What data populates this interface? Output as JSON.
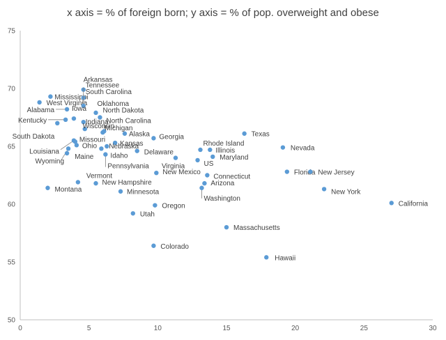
{
  "chart_data": {
    "type": "scatter",
    "title": "x axis = % of foreign born; y axis = % of pop. overweight and obese",
    "xlabel": "",
    "ylabel": "",
    "xlim": [
      0,
      30
    ],
    "ylim": [
      50,
      75
    ],
    "x_ticks": [
      "0",
      "5",
      "10",
      "15",
      "20",
      "25",
      "30"
    ],
    "y_ticks": [
      "50",
      "55",
      "60",
      "65",
      "70",
      "75"
    ],
    "grid": false,
    "legend": "none",
    "color": "#5b9bd5",
    "points": [
      {
        "label": "Arkansas",
        "x": 4.6,
        "y": 69.9
      },
      {
        "label": "Mississippi",
        "x": 2.2,
        "y": 69.3
      },
      {
        "label": "Tennessee",
        "x": 4.6,
        "y": 69.2
      },
      {
        "label": "West Virginia",
        "x": 1.4,
        "y": 68.8
      },
      {
        "label": "South Carolina",
        "x": 4.6,
        "y": 68.5
      },
      {
        "label": "Oklahoma",
        "x": 5.5,
        "y": 67.9
      },
      {
        "label": "Alabama",
        "x": 3.4,
        "y": 68.2
      },
      {
        "label": "North Dakota",
        "x": 5.8,
        "y": 67.5
      },
      {
        "label": "Iowa",
        "x": 3.9,
        "y": 67.4
      },
      {
        "label": "Kentucky",
        "x": 3.3,
        "y": 67.3
      },
      {
        "label": "Indiana",
        "x": 4.6,
        "y": 67.1
      },
      {
        "label": "South Dakota",
        "x": 2.7,
        "y": 67.0
      },
      {
        "label": "Wisconsin",
        "x": 4.7,
        "y": 66.5
      },
      {
        "label": "North Carolina",
        "x": 6.1,
        "y": 66.3
      },
      {
        "label": "Michigan",
        "x": 6.0,
        "y": 66.2
      },
      {
        "label": "Alaska",
        "x": 7.6,
        "y": 66.1
      },
      {
        "label": "Texas",
        "x": 16.3,
        "y": 66.1
      },
      {
        "label": "Georgia",
        "x": 9.7,
        "y": 65.7
      },
      {
        "label": "Louisiana",
        "x": 3.9,
        "y": 65.5
      },
      {
        "label": "Missouri",
        "x": 4.0,
        "y": 65.4
      },
      {
        "label": "Kansas",
        "x": 6.9,
        "y": 65.3
      },
      {
        "label": "Ohio",
        "x": 4.1,
        "y": 65.1
      },
      {
        "label": "Nebraska",
        "x": 6.3,
        "y": 65.0
      },
      {
        "label": "Rhode Island",
        "x": 13.1,
        "y": 64.7
      },
      {
        "label": "Illinois",
        "x": 13.8,
        "y": 64.7
      },
      {
        "label": "Nevada",
        "x": 19.1,
        "y": 64.9
      },
      {
        "label": "Idaho",
        "x": 5.9,
        "y": 64.8
      },
      {
        "label": "Delaware",
        "x": 8.5,
        "y": 64.6
      },
      {
        "label": "Wyoming",
        "x": 3.5,
        "y": 64.8
      },
      {
        "label": "Maine",
        "x": 3.4,
        "y": 64.4
      },
      {
        "label": "Pennsylvania",
        "x": 6.2,
        "y": 64.3
      },
      {
        "label": "Maryland",
        "x": 14.0,
        "y": 64.1
      },
      {
        "label": "Virginia",
        "x": 11.3,
        "y": 64.0
      },
      {
        "label": "US",
        "x": 12.9,
        "y": 63.8
      },
      {
        "label": "Florida",
        "x": 19.4,
        "y": 62.8
      },
      {
        "label": "New Jersey",
        "x": 21.1,
        "y": 62.8
      },
      {
        "label": "New Mexico",
        "x": 9.9,
        "y": 62.7
      },
      {
        "label": "Connecticut",
        "x": 13.6,
        "y": 62.5
      },
      {
        "label": "Vermont",
        "x": 4.2,
        "y": 61.9
      },
      {
        "label": "New Hampshire",
        "x": 5.5,
        "y": 61.8
      },
      {
        "label": "Arizona",
        "x": 13.4,
        "y": 61.8
      },
      {
        "label": "Montana",
        "x": 2.0,
        "y": 61.4
      },
      {
        "label": "Washington",
        "x": 13.2,
        "y": 61.4
      },
      {
        "label": "New York",
        "x": 22.1,
        "y": 61.3
      },
      {
        "label": "Minnesota",
        "x": 7.3,
        "y": 61.1
      },
      {
        "label": "California",
        "x": 27.0,
        "y": 60.1
      },
      {
        "label": "Oregon",
        "x": 9.8,
        "y": 59.9
      },
      {
        "label": "Utah",
        "x": 8.2,
        "y": 59.2
      },
      {
        "label": "Massachusetts",
        "x": 15.0,
        "y": 58.0
      },
      {
        "label": "Colorado",
        "x": 9.7,
        "y": 56.4
      },
      {
        "label": "Hawaii",
        "x": 17.9,
        "y": 55.4
      }
    ]
  }
}
